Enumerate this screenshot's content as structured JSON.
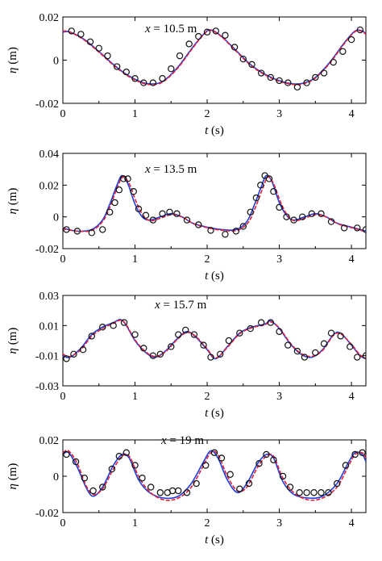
{
  "colors": {
    "measured": "#111111",
    "model_a": "#1f3fd8",
    "model_b": "#e0203c"
  },
  "chart_data": [
    {
      "type": "line",
      "annotation": {
        "var": "x",
        "text": " = 10.5 m"
      },
      "xlabel": {
        "var": "t",
        "unit": " (s)"
      },
      "ylabel": {
        "var": "η",
        "unit": " (m)"
      },
      "xlim": [
        0,
        4.2
      ],
      "ylim": [
        -0.02,
        0.02
      ],
      "xticks": [
        0,
        1,
        2,
        3,
        4
      ],
      "yticks": [
        -0.02,
        0,
        0.02
      ],
      "ytick_labels": [
        "-0.02",
        "0",
        "0.02"
      ],
      "series": [
        {
          "style": "line-blue",
          "x": [
            0,
            0.1,
            0.3,
            0.5,
            0.7,
            0.9,
            1.1,
            1.25,
            1.4,
            1.6,
            1.8,
            1.95,
            2.05,
            2.2,
            2.4,
            2.6,
            2.8,
            3.0,
            3.2,
            3.35,
            3.5,
            3.7,
            3.9,
            4.05,
            4.15,
            4.2
          ],
          "y": [
            0.013,
            0.013,
            0.0095,
            0.004,
            -0.002,
            -0.007,
            -0.0103,
            -0.011,
            -0.0095,
            -0.003,
            0.006,
            0.012,
            0.014,
            0.011,
            0.0045,
            -0.002,
            -0.0065,
            -0.0095,
            -0.011,
            -0.0105,
            -0.008,
            -0.001,
            0.008,
            0.0135,
            0.0135,
            0.012
          ]
        },
        {
          "style": "line-red",
          "x": [
            0,
            0.1,
            0.3,
            0.5,
            0.7,
            0.9,
            1.1,
            1.25,
            1.4,
            1.6,
            1.8,
            1.95,
            2.05,
            2.2,
            2.4,
            2.6,
            2.8,
            3.0,
            3.2,
            3.35,
            3.5,
            3.7,
            3.9,
            4.05,
            4.15,
            4.2
          ],
          "y": [
            0.0135,
            0.013,
            0.0092,
            0.0037,
            -0.0023,
            -0.0073,
            -0.0106,
            -0.0113,
            -0.0098,
            -0.0034,
            0.0056,
            0.0118,
            0.0138,
            0.0108,
            0.0042,
            -0.0023,
            -0.0068,
            -0.0098,
            -0.0113,
            -0.0108,
            -0.0083,
            -0.0014,
            0.0076,
            0.0132,
            0.0133,
            0.0118
          ]
        },
        {
          "style": "markers",
          "x": [
            0.12,
            0.25,
            0.38,
            0.5,
            0.62,
            0.75,
            0.88,
            1.0,
            1.12,
            1.25,
            1.38,
            1.5,
            1.62,
            1.75,
            1.88,
            2.0,
            2.12,
            2.25,
            2.38,
            2.5,
            2.62,
            2.75,
            2.88,
            3.0,
            3.12,
            3.25,
            3.38,
            3.5,
            3.62,
            3.75,
            3.88,
            4.0,
            4.12
          ],
          "y": [
            0.0135,
            0.012,
            0.0085,
            0.0055,
            0.002,
            -0.003,
            -0.0055,
            -0.0085,
            -0.0105,
            -0.0105,
            -0.0085,
            -0.004,
            0.002,
            0.0075,
            0.011,
            0.013,
            0.0135,
            0.0115,
            0.006,
            0.0005,
            -0.002,
            -0.006,
            -0.008,
            -0.0095,
            -0.0105,
            -0.0125,
            -0.0105,
            -0.008,
            -0.006,
            -0.001,
            0.004,
            0.0095,
            0.014
          ]
        }
      ]
    },
    {
      "type": "line",
      "annotation": {
        "var": "x",
        "text": " = 13.5 m"
      },
      "xlabel": {
        "var": "t",
        "unit": " (s)"
      },
      "ylabel": {
        "var": "η",
        "unit": " (m)"
      },
      "xlim": [
        0,
        4.2
      ],
      "ylim": [
        -0.02,
        0.04
      ],
      "xticks": [
        0,
        1,
        2,
        3,
        4
      ],
      "yticks": [
        -0.02,
        0,
        0.02,
        0.04
      ],
      "ytick_labels": [
        "-0.02",
        "0",
        "0.02",
        "0.04"
      ],
      "series": [
        {
          "style": "line-blue",
          "x": [
            0,
            0.2,
            0.4,
            0.55,
            0.65,
            0.75,
            0.82,
            0.9,
            1.0,
            1.1,
            1.2,
            1.35,
            1.5,
            1.65,
            1.8,
            2.0,
            2.2,
            2.4,
            2.55,
            2.65,
            2.75,
            2.82,
            2.9,
            3.0,
            3.1,
            3.2,
            3.35,
            3.5,
            3.65,
            3.8,
            4.0,
            4.2
          ],
          "y": [
            -0.007,
            -0.009,
            -0.008,
            -0.002,
            0.008,
            0.02,
            0.026,
            0.021,
            0.008,
            0.0,
            -0.002,
            0.0,
            0.002,
            0.0,
            -0.004,
            -0.0065,
            -0.008,
            -0.008,
            -0.003,
            0.007,
            0.019,
            0.026,
            0.022,
            0.009,
            0.001,
            -0.002,
            0.0,
            0.002,
            0.0,
            -0.004,
            -0.0065,
            -0.009
          ]
        },
        {
          "style": "line-red",
          "x": [
            0,
            0.2,
            0.4,
            0.55,
            0.65,
            0.75,
            0.83,
            0.92,
            1.02,
            1.12,
            1.22,
            1.37,
            1.52,
            1.67,
            1.82,
            2.02,
            2.22,
            2.42,
            2.57,
            2.67,
            2.77,
            2.84,
            2.92,
            3.02,
            3.12,
            3.22,
            3.37,
            3.52,
            3.67,
            3.82,
            4.02,
            4.2
          ],
          "y": [
            -0.0075,
            -0.009,
            -0.0085,
            -0.003,
            0.006,
            0.018,
            0.025,
            0.021,
            0.009,
            0.0005,
            -0.0025,
            -0.0005,
            0.0015,
            -0.0005,
            -0.0045,
            -0.007,
            -0.0085,
            -0.0085,
            -0.0035,
            0.006,
            0.018,
            0.025,
            0.021,
            0.009,
            0.0005,
            -0.0025,
            -0.0005,
            0.0015,
            -0.0005,
            -0.0045,
            -0.007,
            -0.0095
          ]
        },
        {
          "style": "markers",
          "x": [
            0.05,
            0.2,
            0.4,
            0.55,
            0.65,
            0.72,
            0.78,
            0.84,
            0.9,
            0.98,
            1.05,
            1.15,
            1.25,
            1.38,
            1.48,
            1.58,
            1.72,
            1.88,
            2.05,
            2.25,
            2.4,
            2.5,
            2.6,
            2.68,
            2.74,
            2.8,
            2.86,
            2.92,
            3.0,
            3.1,
            3.2,
            3.32,
            3.45,
            3.58,
            3.72,
            3.9,
            4.08,
            4.2
          ],
          "y": [
            -0.008,
            -0.009,
            -0.01,
            -0.008,
            0.003,
            0.009,
            0.017,
            0.024,
            0.024,
            0.016,
            0.005,
            0.001,
            -0.002,
            0.002,
            0.003,
            0.002,
            -0.002,
            -0.005,
            -0.0085,
            -0.011,
            -0.009,
            -0.006,
            0.003,
            0.012,
            0.02,
            0.026,
            0.024,
            0.016,
            0.006,
            0.0,
            -0.002,
            0.0,
            0.002,
            0.002,
            -0.003,
            -0.007,
            -0.007,
            -0.008
          ]
        }
      ]
    },
    {
      "type": "line",
      "annotation": {
        "var": "x",
        "text": " = 15.7 m"
      },
      "xlabel": {
        "var": "t",
        "unit": " (s)"
      },
      "ylabel": {
        "var": "η",
        "unit": " (m)"
      },
      "xlim": [
        0,
        4.2
      ],
      "ylim": [
        -0.03,
        0.03
      ],
      "xticks": [
        0,
        1,
        2,
        3,
        4
      ],
      "yticks": [
        -0.03,
        -0.01,
        0.01,
        0.03
      ],
      "ytick_labels": [
        "-0.03",
        "-0.01",
        "0.01",
        "0.03"
      ],
      "series": [
        {
          "style": "line-blue",
          "x": [
            0,
            0.1,
            0.25,
            0.4,
            0.55,
            0.7,
            0.8,
            0.88,
            1.0,
            1.15,
            1.28,
            1.42,
            1.58,
            1.72,
            1.85,
            2.0,
            2.12,
            2.28,
            2.45,
            2.62,
            2.8,
            2.88,
            3.0,
            3.15,
            3.3,
            3.45,
            3.6,
            3.75,
            3.85,
            4.0,
            4.12,
            4.2
          ],
          "y": [
            -0.01,
            -0.011,
            -0.005,
            0.004,
            0.009,
            0.012,
            0.014,
            0.01,
            0.0,
            -0.008,
            -0.011,
            -0.007,
            0.001,
            0.006,
            0.002,
            -0.006,
            -0.012,
            -0.004,
            0.005,
            0.009,
            0.011,
            0.013,
            0.008,
            -0.002,
            -0.009,
            -0.011,
            -0.006,
            0.004,
            0.005,
            -0.003,
            -0.01,
            -0.012
          ]
        },
        {
          "style": "line-red",
          "x": [
            0,
            0.1,
            0.25,
            0.4,
            0.55,
            0.7,
            0.8,
            0.88,
            1.0,
            1.15,
            1.28,
            1.42,
            1.58,
            1.72,
            1.85,
            2.0,
            2.12,
            2.28,
            2.45,
            2.62,
            2.8,
            2.88,
            3.0,
            3.15,
            3.3,
            3.45,
            3.6,
            3.75,
            3.85,
            4.0,
            4.12,
            4.2
          ],
          "y": [
            -0.009,
            -0.0105,
            -0.006,
            0.003,
            0.008,
            0.0115,
            0.0135,
            0.0105,
            0.0005,
            -0.0075,
            -0.0105,
            -0.0075,
            0.0005,
            0.0055,
            0.0025,
            -0.0055,
            -0.0115,
            -0.0045,
            0.0045,
            0.0085,
            0.0105,
            0.0125,
            0.0085,
            -0.0015,
            -0.0085,
            -0.0105,
            -0.0065,
            0.0035,
            0.0045,
            -0.0025,
            -0.0095,
            -0.0115
          ]
        },
        {
          "style": "markers",
          "x": [
            0.05,
            0.15,
            0.28,
            0.4,
            0.55,
            0.7,
            0.85,
            1.0,
            1.12,
            1.25,
            1.35,
            1.5,
            1.6,
            1.7,
            1.82,
            1.95,
            2.05,
            2.18,
            2.3,
            2.45,
            2.6,
            2.75,
            2.88,
            3.0,
            3.12,
            3.25,
            3.35,
            3.5,
            3.62,
            3.72,
            3.85,
            3.98,
            4.08,
            4.2
          ],
          "y": [
            -0.012,
            -0.009,
            -0.006,
            0.003,
            0.009,
            0.01,
            0.012,
            0.004,
            -0.005,
            -0.01,
            -0.009,
            -0.004,
            0.004,
            0.007,
            0.004,
            -0.003,
            -0.011,
            -0.009,
            0.0,
            0.005,
            0.008,
            0.012,
            0.012,
            0.006,
            -0.003,
            -0.007,
            -0.011,
            -0.008,
            -0.002,
            0.005,
            0.003,
            -0.004,
            -0.011,
            -0.01
          ]
        }
      ]
    },
    {
      "type": "line",
      "annotation": {
        "var": "x",
        "text": " = 19 m"
      },
      "xlabel": {
        "var": "t",
        "unit": " (s)"
      },
      "ylabel": {
        "var": "η",
        "unit": " (m)"
      },
      "xlim": [
        0,
        4.2
      ],
      "ylim": [
        -0.02,
        0.02
      ],
      "xticks": [
        0,
        1,
        2,
        3,
        4
      ],
      "yticks": [
        -0.02,
        0,
        0.02
      ],
      "ytick_labels": [
        "-0.02",
        "0",
        "0.02"
      ],
      "series": [
        {
          "style": "line-blue",
          "x": [
            0,
            0.08,
            0.2,
            0.32,
            0.42,
            0.55,
            0.7,
            0.82,
            0.92,
            1.05,
            1.2,
            1.4,
            1.6,
            1.78,
            1.95,
            2.05,
            2.15,
            2.28,
            2.42,
            2.55,
            2.7,
            2.82,
            2.92,
            3.05,
            3.2,
            3.4,
            3.6,
            3.8,
            3.95,
            4.05,
            4.15,
            4.2
          ],
          "y": [
            0.012,
            0.013,
            0.005,
            -0.006,
            -0.011,
            -0.006,
            0.006,
            0.012,
            0.01,
            -0.002,
            -0.009,
            -0.012,
            -0.011,
            -0.004,
            0.008,
            0.014,
            0.01,
            -0.002,
            -0.009,
            -0.004,
            0.007,
            0.012,
            0.01,
            -0.003,
            -0.01,
            -0.012,
            -0.011,
            -0.004,
            0.007,
            0.013,
            0.012,
            0.008
          ]
        },
        {
          "style": "line-red",
          "x": [
            0,
            0.08,
            0.2,
            0.32,
            0.42,
            0.55,
            0.7,
            0.82,
            0.92,
            1.05,
            1.2,
            1.4,
            1.6,
            1.78,
            1.95,
            2.05,
            2.15,
            2.28,
            2.42,
            2.55,
            2.7,
            2.82,
            2.92,
            3.05,
            3.2,
            3.4,
            3.6,
            3.8,
            3.95,
            4.05,
            4.15,
            4.2
          ],
          "y": [
            0.013,
            0.014,
            0.007,
            -0.005,
            -0.01,
            -0.007,
            0.004,
            0.011,
            0.011,
            0.0,
            -0.0085,
            -0.013,
            -0.012,
            -0.006,
            0.006,
            0.013,
            0.012,
            0.0,
            -0.008,
            -0.006,
            0.005,
            0.011,
            0.011,
            -0.001,
            -0.009,
            -0.013,
            -0.012,
            -0.006,
            0.005,
            0.012,
            0.013,
            0.01
          ]
        },
        {
          "style": "markers",
          "x": [
            0.05,
            0.18,
            0.3,
            0.42,
            0.55,
            0.68,
            0.78,
            0.88,
            1.0,
            1.1,
            1.22,
            1.35,
            1.45,
            1.52,
            1.6,
            1.72,
            1.85,
            1.98,
            2.1,
            2.2,
            2.32,
            2.45,
            2.58,
            2.72,
            2.82,
            2.92,
            3.05,
            3.15,
            3.28,
            3.38,
            3.48,
            3.58,
            3.68,
            3.8,
            3.92,
            4.05,
            4.15
          ],
          "y": [
            0.012,
            0.008,
            -0.001,
            -0.008,
            -0.006,
            0.004,
            0.011,
            0.013,
            0.006,
            -0.001,
            -0.006,
            -0.009,
            -0.009,
            -0.008,
            -0.008,
            -0.009,
            -0.004,
            0.006,
            0.013,
            0.01,
            0.001,
            -0.007,
            -0.004,
            0.007,
            0.012,
            0.009,
            0.0,
            -0.006,
            -0.009,
            -0.009,
            -0.009,
            -0.009,
            -0.009,
            -0.004,
            0.006,
            0.012,
            0.013
          ]
        }
      ]
    }
  ]
}
